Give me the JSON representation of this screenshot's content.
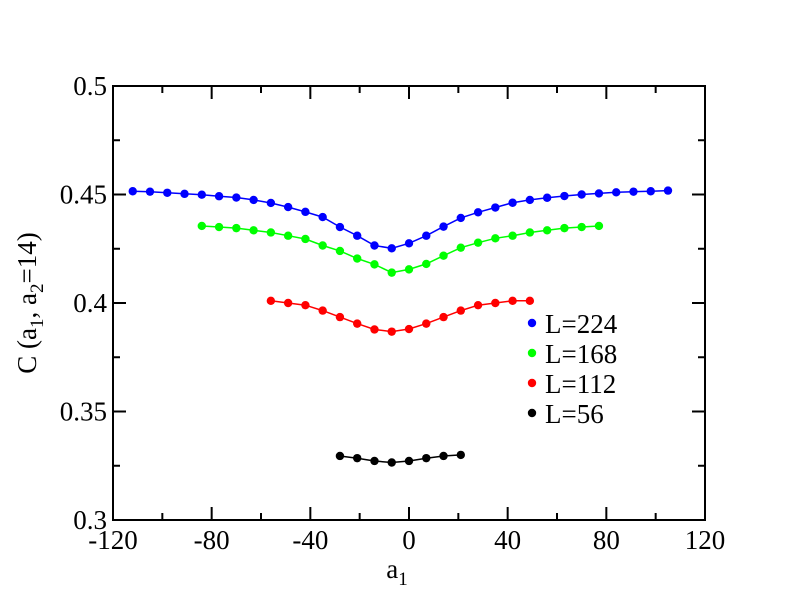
{
  "chart_data": {
    "type": "line",
    "xlabel": "a",
    "xlabel_sub": "1",
    "ylabel_parts": [
      "C (a",
      "1",
      ", a",
      "2",
      "=14)"
    ],
    "xlim": [
      -120,
      120
    ],
    "ylim": [
      0.3,
      0.5
    ],
    "xticks": [
      -120,
      -80,
      -40,
      0,
      40,
      80,
      120
    ],
    "xtick_labels": [
      "-120",
      "-80",
      "-40",
      "0",
      "40",
      "80",
      "120"
    ],
    "yticks": [
      0.3,
      0.35,
      0.4,
      0.45,
      0.5
    ],
    "ytick_labels": [
      "0.3",
      "0.35",
      "0.4",
      "0.45",
      "0.5"
    ],
    "grid": false,
    "legend_position": "center-right",
    "series": [
      {
        "name": "L=224",
        "color": "#0000ff",
        "x": [
          -112,
          -105,
          -98,
          -91,
          -84,
          -77,
          -70,
          -63,
          -56,
          -49,
          -42,
          -35,
          -28,
          -21,
          -14,
          -7,
          0,
          7,
          14,
          21,
          28,
          35,
          42,
          49,
          56,
          63,
          70,
          77,
          84,
          91,
          98,
          105
        ],
        "y": [
          0.4515,
          0.4513,
          0.4508,
          0.4503,
          0.4499,
          0.4492,
          0.4486,
          0.4475,
          0.4461,
          0.4442,
          0.442,
          0.4396,
          0.435,
          0.431,
          0.4265,
          0.4252,
          0.4275,
          0.431,
          0.4352,
          0.4392,
          0.4418,
          0.444,
          0.4462,
          0.4475,
          0.4485,
          0.4493,
          0.45,
          0.4505,
          0.451,
          0.4513,
          0.4515,
          0.4518
        ]
      },
      {
        "name": "L=168",
        "color": "#00ff00",
        "x": [
          -84,
          -77,
          -70,
          -63,
          -56,
          -49,
          -42,
          -35,
          -28,
          -21,
          -14,
          -7,
          0,
          7,
          14,
          21,
          28,
          35,
          42,
          49,
          56,
          63,
          70,
          77
        ],
        "y": [
          0.4355,
          0.435,
          0.4345,
          0.4335,
          0.4325,
          0.431,
          0.4295,
          0.4265,
          0.424,
          0.4205,
          0.4178,
          0.414,
          0.4155,
          0.418,
          0.4218,
          0.4255,
          0.4278,
          0.4298,
          0.431,
          0.4325,
          0.4335,
          0.4345,
          0.435,
          0.4355
        ]
      },
      {
        "name": "L=112",
        "color": "#ff0000",
        "x": [
          -56,
          -49,
          -42,
          -35,
          -28,
          -21,
          -14,
          -7,
          0,
          7,
          14,
          21,
          28,
          35,
          42,
          49
        ],
        "y": [
          0.401,
          0.4,
          0.399,
          0.3965,
          0.3935,
          0.3905,
          0.3878,
          0.3868,
          0.388,
          0.3905,
          0.3935,
          0.3965,
          0.399,
          0.4,
          0.401,
          0.401
        ]
      },
      {
        "name": "L=56",
        "color": "#000000",
        "x": [
          -28,
          -21,
          -14,
          -7,
          0,
          7,
          14,
          21
        ],
        "y": [
          0.3295,
          0.3285,
          0.3272,
          0.3265,
          0.3272,
          0.3285,
          0.3295,
          0.33
        ]
      }
    ]
  }
}
